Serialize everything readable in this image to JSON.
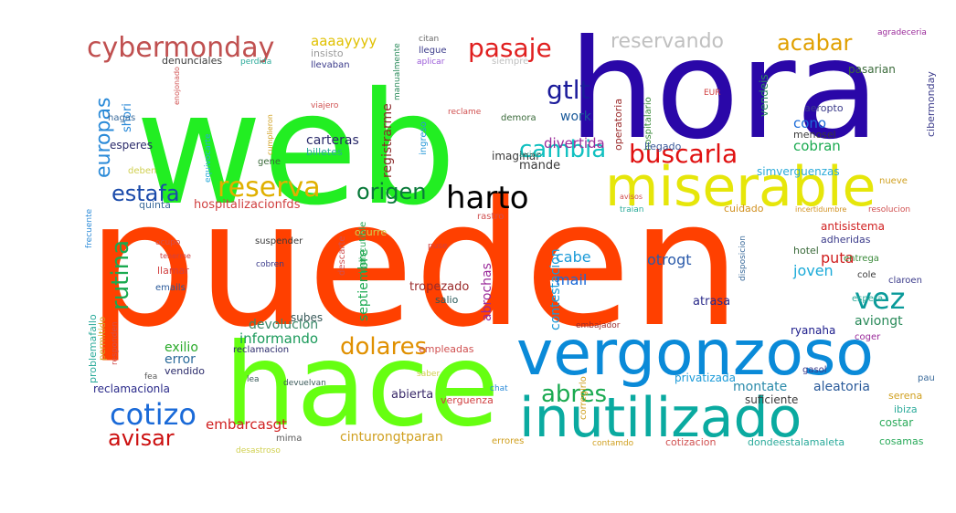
{
  "words": [
    {
      "text": "pueden",
      "color": "#ff4000",
      "vertical": false
    },
    {
      "text": "web",
      "color": "#22ee22",
      "vertical": false
    },
    {
      "text": "hora",
      "color": "#2a07a8",
      "vertical": false
    },
    {
      "text": "hace",
      "color": "#66ff11",
      "vertical": false
    },
    {
      "text": "vergonzoso",
      "color": "#0a8ad8",
      "vertical": false
    },
    {
      "text": "inutilizado",
      "color": "#0aaaa0",
      "vertical": false
    },
    {
      "text": "miserable",
      "color": "#e6e60a",
      "vertical": false
    },
    {
      "text": "cybermonday",
      "color": "#c05050",
      "vertical": false
    },
    {
      "text": "pasaje",
      "color": "#e02020",
      "vertical": false
    },
    {
      "text": "reservando",
      "color": "#c0c0c0",
      "vertical": false
    },
    {
      "text": "acabar",
      "color": "#e0a000",
      "vertical": false
    },
    {
      "text": "harto",
      "color": "#000000",
      "vertical": false
    },
    {
      "text": "buscarla",
      "color": "#e01010",
      "vertical": false
    },
    {
      "text": "reserva",
      "color": "#e0b000",
      "vertical": false
    },
    {
      "text": "origen",
      "color": "#0a7a3a",
      "vertical": false
    },
    {
      "text": "cambia",
      "color": "#10c0c0",
      "vertical": false
    },
    {
      "text": "gtlt",
      "color": "#1a1a9a",
      "vertical": false
    },
    {
      "text": "estafa",
      "color": "#1a4aaa",
      "vertical": false
    },
    {
      "text": "rutina",
      "color": "#1aaa50",
      "vertical": true
    },
    {
      "text": "europas",
      "color": "#2a8ad8",
      "vertical": true
    },
    {
      "text": "cotizo",
      "color": "#1a6ad8",
      "vertical": false
    },
    {
      "text": "avisar",
      "color": "#cc1010",
      "vertical": false
    },
    {
      "text": "dolares",
      "color": "#e09000",
      "vertical": false
    },
    {
      "text": "abres",
      "color": "#1aaa50",
      "vertical": false
    },
    {
      "text": "vez",
      "color": "#0a9a9a",
      "vertical": false
    },
    {
      "text": "aaaayyyy",
      "color": "#e0c000",
      "vertical": false
    },
    {
      "text": "shori",
      "color": "#2a8ad8",
      "vertical": true
    },
    {
      "text": "denunciales",
      "color": "#3a3a3a",
      "vertical": false
    },
    {
      "text": "insisto",
      "color": "#9a9a9a",
      "vertical": false
    },
    {
      "text": "llevaban",
      "color": "#3a3a8a",
      "vertical": false
    },
    {
      "text": "citan",
      "color": "#6a6a6a",
      "vertical": false
    },
    {
      "text": "llegue",
      "color": "#3a3a8a",
      "vertical": false
    },
    {
      "text": "aplicar",
      "color": "#9a5ad8",
      "vertical": false
    },
    {
      "text": "perdida",
      "color": "#2aaa9a",
      "vertical": false
    },
    {
      "text": "registrarme",
      "color": "#8a2a2a",
      "vertical": true
    },
    {
      "text": "manualmente",
      "color": "#2a8a5a",
      "vertical": true
    },
    {
      "text": "carteras",
      "color": "#2a2a6a",
      "vertical": false
    },
    {
      "text": "billetes",
      "color": "#2aaa9a",
      "vertical": false
    },
    {
      "text": "work",
      "color": "#1a5a9a",
      "vertical": false
    },
    {
      "text": "divertida",
      "color": "#9a2a9a",
      "vertical": false
    },
    {
      "text": "demora",
      "color": "#3a6a3a",
      "vertical": false
    },
    {
      "text": "reclame",
      "color": "#d05050",
      "vertical": false
    },
    {
      "text": "ingreso",
      "color": "#2a9ad8",
      "vertical": true
    },
    {
      "text": "imaginar",
      "color": "#3a3a3a",
      "vertical": false
    },
    {
      "text": "mande",
      "color": "#3a3a3a",
      "vertical": false
    },
    {
      "text": "avion",
      "color": "#2aaa9a",
      "vertical": false
    },
    {
      "text": "operatoria",
      "color": "#9a2a2a",
      "vertical": true
    },
    {
      "text": "hospitalario",
      "color": "#3a8a3a",
      "vertical": true
    },
    {
      "text": "cobran",
      "color": "#1aaa50",
      "vertical": false
    },
    {
      "text": "cono",
      "color": "#1a6ad8",
      "vertical": false
    },
    {
      "text": "menosel",
      "color": "#3a3a3a",
      "vertical": false
    },
    {
      "text": "aeropto",
      "color": "#3a3a8a",
      "vertical": false
    },
    {
      "text": "cibermonday",
      "color": "#3a3a8a",
      "vertical": true
    },
    {
      "text": "pasarian",
      "color": "#3a6a3a",
      "vertical": false
    },
    {
      "text": "vendeis",
      "color": "#2a8a5a",
      "vertical": true
    },
    {
      "text": "llegado",
      "color": "#3a5a9a",
      "vertical": false
    },
    {
      "text": "simverguenzas",
      "color": "#2aaad8",
      "vertical": false
    },
    {
      "text": "nueve",
      "color": "#d0a020",
      "vertical": false
    },
    {
      "text": "hospitalizacionfds",
      "color": "#d04040",
      "vertical": false
    },
    {
      "text": "quinta",
      "color": "#3a6a9a",
      "vertical": false
    },
    {
      "text": "ocurre",
      "color": "#d0d050",
      "vertical": false
    },
    {
      "text": "rastro",
      "color": "#d05050",
      "vertical": false
    },
    {
      "text": "traian",
      "color": "#2aaa9a",
      "vertical": false
    },
    {
      "text": "cuidado",
      "color": "#d09020",
      "vertical": false
    },
    {
      "text": "incertidumbre",
      "color": "#d09020",
      "vertical": false
    },
    {
      "text": "resolucion",
      "color": "#d05050",
      "vertical": false
    },
    {
      "text": "antisistema",
      "color": "#d02020",
      "vertical": false
    },
    {
      "text": "adheridas",
      "color": "#3a3a8a",
      "vertical": false
    },
    {
      "text": "devolucion",
      "color": "#3a8a6a",
      "vertical": false
    },
    {
      "text": "septiembre",
      "color": "#1aaa50",
      "vertical": true
    },
    {
      "text": "abrochas",
      "color": "#9a2a9a",
      "vertical": true
    },
    {
      "text": "contestacion",
      "color": "#1a9ad8",
      "vertical": true
    },
    {
      "text": "cabe",
      "color": "#1a9ad8",
      "vertical": false
    },
    {
      "text": "mail",
      "color": "#1a6ad8",
      "vertical": false
    },
    {
      "text": "otrogt",
      "color": "#2a5aaa",
      "vertical": false
    },
    {
      "text": "joven",
      "color": "#1aaad8",
      "vertical": false
    },
    {
      "text": "puta",
      "color": "#d02020",
      "vertical": false
    },
    {
      "text": "hotel",
      "color": "#3a6a3a",
      "vertical": false
    },
    {
      "text": "entrega",
      "color": "#3a8a3a",
      "vertical": false
    },
    {
      "text": "cole",
      "color": "#3a3a3a",
      "vertical": false
    },
    {
      "text": "claroen",
      "color": "#3a3a8a",
      "vertical": false
    },
    {
      "text": "espera",
      "color": "#2aaa9a",
      "vertical": false
    },
    {
      "text": "aviongt",
      "color": "#2a8a5a",
      "vertical": false
    },
    {
      "text": "coger",
      "color": "#9a2a9a",
      "vertical": false
    },
    {
      "text": "ryanaha",
      "color": "#1a1a8a",
      "vertical": false
    },
    {
      "text": "atrasa",
      "color": "#2a2a8a",
      "vertical": false
    },
    {
      "text": "tropezado",
      "color": "#9a2a2a",
      "vertical": false
    },
    {
      "text": "salio",
      "color": "#2a5a5a",
      "vertical": false
    },
    {
      "text": "subes",
      "color": "#3a5a5a",
      "vertical": false
    },
    {
      "text": "informando",
      "color": "#1a9a5a",
      "vertical": false
    },
    {
      "text": "exilio",
      "color": "#2aaa2a",
      "vertical": false
    },
    {
      "text": "error",
      "color": "#2a6a9a",
      "vertical": false
    },
    {
      "text": "vendido",
      "color": "#2a2a6a",
      "vertical": false
    },
    {
      "text": "reclamacion",
      "color": "#2a2a6a",
      "vertical": false
    },
    {
      "text": "empleadas",
      "color": "#d05050",
      "vertical": false
    },
    {
      "text": "montate",
      "color": "#2a8aaa",
      "vertical": false
    },
    {
      "text": "aleatoria",
      "color": "#2a5a9a",
      "vertical": false
    },
    {
      "text": "suficiente",
      "color": "#3a3a3a",
      "vertical": false
    },
    {
      "text": "privatizada",
      "color": "#1a9ad8",
      "vertical": false
    },
    {
      "text": "reclamacionla",
      "color": "#2a2a8a",
      "vertical": false
    },
    {
      "text": "embarcasgt",
      "color": "#d02020",
      "vertical": false
    },
    {
      "text": "mima",
      "color": "#5a5a5a",
      "vertical": false
    },
    {
      "text": "cinturongtparan",
      "color": "#d0a020",
      "vertical": false
    },
    {
      "text": "contamdo",
      "color": "#d0a020",
      "vertical": false
    },
    {
      "text": "cotizacion",
      "color": "#d05050",
      "vertical": false
    },
    {
      "text": "dondeestalamaleta",
      "color": "#2aaa9a",
      "vertical": false
    },
    {
      "text": "costar",
      "color": "#2aaa5a",
      "vertical": false
    },
    {
      "text": "cosamas",
      "color": "#2aaa5a",
      "vertical": false
    },
    {
      "text": "serena",
      "color": "#d0a020",
      "vertical": false
    },
    {
      "text": "ibiza",
      "color": "#2aaa9a",
      "vertical": false
    },
    {
      "text": "pau",
      "color": "#3a6a9a",
      "vertical": false
    },
    {
      "text": "abierta",
      "color": "#3a2a6a",
      "vertical": false
    },
    {
      "text": "verguenza",
      "color": "#d04040",
      "vertical": false
    },
    {
      "text": "devuelvan",
      "color": "#3a5a5a",
      "vertical": false
    },
    {
      "text": "errores",
      "color": "#d0a020",
      "vertical": false
    },
    {
      "text": "desastroso",
      "color": "#d0d050",
      "vertical": false
    },
    {
      "text": "fea",
      "color": "#5a5a5a",
      "vertical": false
    },
    {
      "text": "hagas",
      "color": "#3a6a9a",
      "vertical": false
    },
    {
      "text": "esperes",
      "color": "#2a2a6a",
      "vertical": false
    },
    {
      "text": "deben",
      "color": "#d0d050",
      "vertical": false
    },
    {
      "text": "gene",
      "color": "#3a6a3a",
      "vertical": false
    },
    {
      "text": "llamar",
      "color": "#d04040",
      "vertical": false
    },
    {
      "text": "emails",
      "color": "#2a5a9a",
      "vertical": false
    },
    {
      "text": "problemafallo",
      "color": "#2aaa9a",
      "vertical": true
    },
    {
      "text": "permitido",
      "color": "#d0a020",
      "vertical": true
    },
    {
      "text": "responden",
      "color": "#d05050",
      "vertical": true
    },
    {
      "text": "viajero",
      "color": "#d05050",
      "vertical": false
    },
    {
      "text": "cumplieron",
      "color": "#d0a020",
      "vertical": true
    },
    {
      "text": "equivocarte",
      "color": "#2aaad8",
      "vertical": true
    },
    {
      "text": "enojonado",
      "color": "#d05050",
      "vertical": true
    },
    {
      "text": "frecuente",
      "color": "#2a8ad8",
      "vertical": true
    },
    {
      "text": "ocupo",
      "color": "#d05050",
      "vertical": false
    },
    {
      "text": "tenerme",
      "color": "#d04040",
      "vertical": false
    },
    {
      "text": "suspender",
      "color": "#3a3a3a",
      "vertical": false
    },
    {
      "text": "cobren",
      "color": "#3a3a8a",
      "vertical": false
    },
    {
      "text": "descarte",
      "color": "#d05050",
      "vertical": true
    },
    {
      "text": "indiscutible",
      "color": "#2aaa5a",
      "vertical": true
    },
    {
      "text": "puse",
      "color": "#d04040",
      "vertical": false
    },
    {
      "text": "avisos",
      "color": "#d05050",
      "vertical": false
    },
    {
      "text": "disposicion",
      "color": "#3a6a9a",
      "vertical": true
    },
    {
      "text": "agradeceria",
      "color": "#9a2a9a",
      "vertical": false
    },
    {
      "text": "saber",
      "color": "#d0d050",
      "vertical": false
    },
    {
      "text": "chat",
      "color": "#2a8ad8",
      "vertical": false
    },
    {
      "text": "corregirlo",
      "color": "#d0a020",
      "vertical": true
    },
    {
      "text": "gasol",
      "color": "#3a3a8a",
      "vertical": false
    },
    {
      "text": "siempre",
      "color": "#c0c0c0",
      "vertical": false
    },
    {
      "text": "EUR",
      "color": "#d04040",
      "vertical": false
    },
    {
      "text": "embajador",
      "color": "#9a2a2a",
      "vertical": false
    },
    {
      "text": "lea",
      "color": "#3a5a5a",
      "vertical": false
    }
  ]
}
